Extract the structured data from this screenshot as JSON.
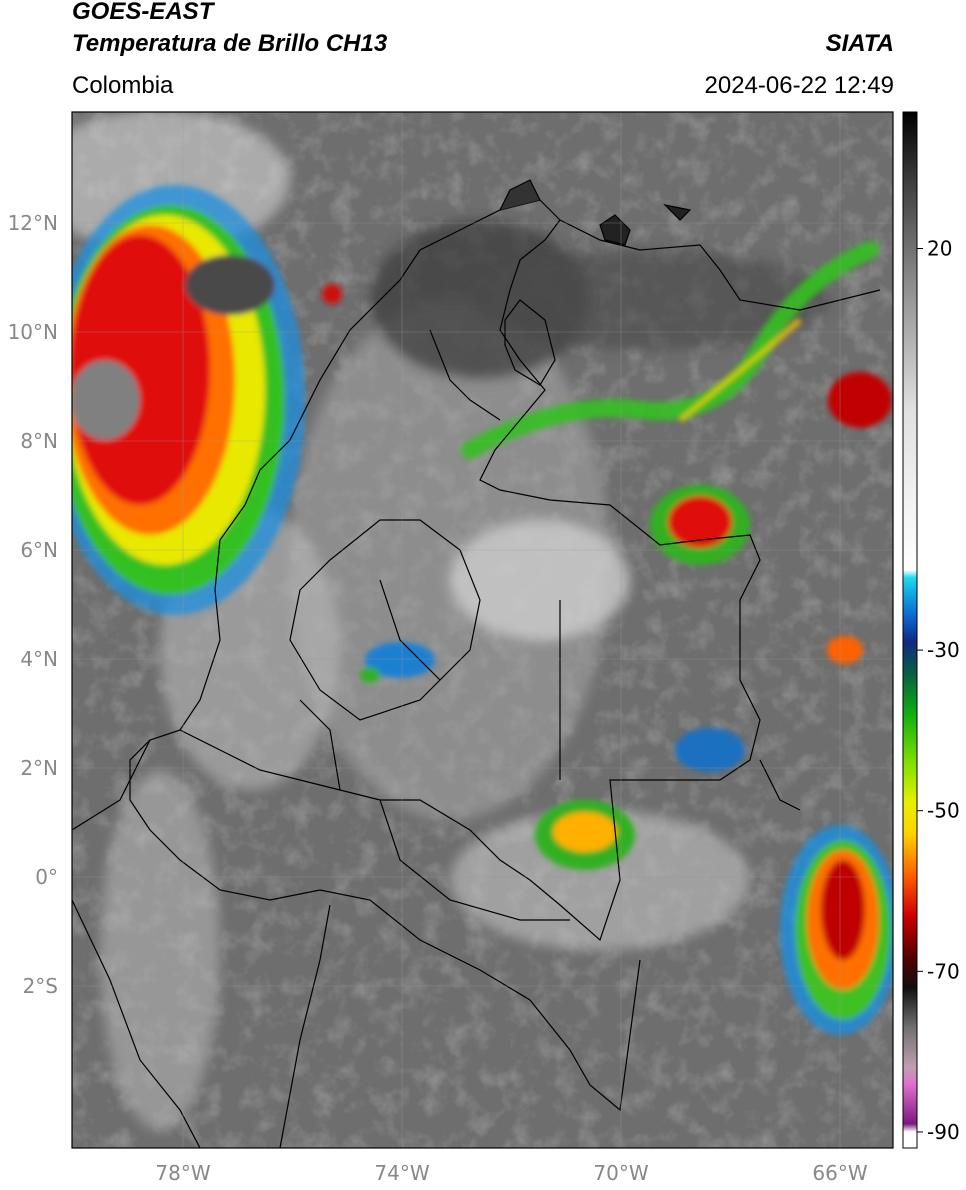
{
  "header": {
    "satellite": "GOES-EAST",
    "product": "Temperatura de Brillo CH13",
    "org": "SIATA",
    "region": "Colombia",
    "datetime": "2024-06-22 12:49"
  },
  "map": {
    "lat_labels": [
      "12°N",
      "10°N",
      "8°N",
      "6°N",
      "4°N",
      "2°N",
      "0°",
      "2°S"
    ],
    "lon_labels": [
      "78°W",
      "74°W",
      "70°W",
      "66°W"
    ],
    "lat_range": [
      -5,
      14
    ],
    "lon_range": [
      -80,
      -65
    ]
  },
  "colorbar": {
    "labels": [
      "20",
      "-30",
      "-50",
      "-70",
      "-90"
    ],
    "range": [
      -92,
      37
    ],
    "stops": [
      {
        "v": -92,
        "c": "#ffffff"
      },
      {
        "v": -90,
        "c": "#ffffff"
      },
      {
        "v": -89,
        "c": "#7a1a80"
      },
      {
        "v": -84,
        "c": "#e070d0"
      },
      {
        "v": -82,
        "c": "#c0a0b0"
      },
      {
        "v": -77,
        "c": "#707070"
      },
      {
        "v": -72,
        "c": "#101010"
      },
      {
        "v": -68,
        "c": "#5a0000"
      },
      {
        "v": -63,
        "c": "#d00000"
      },
      {
        "v": -58,
        "c": "#ff6000"
      },
      {
        "v": -53,
        "c": "#ffd000"
      },
      {
        "v": -49,
        "c": "#e8f000"
      },
      {
        "v": -44,
        "c": "#80e000"
      },
      {
        "v": -38,
        "c": "#10b010"
      },
      {
        "v": -33,
        "c": "#0a5f40"
      },
      {
        "v": -29,
        "c": "#102a80"
      },
      {
        "v": -26,
        "c": "#1060d0"
      },
      {
        "v": -23,
        "c": "#10a8e0"
      },
      {
        "v": -21,
        "c": "#20d8f0"
      },
      {
        "v": -20,
        "c": "#ffffff"
      },
      {
        "v": 0,
        "c": "#e0e0e0"
      },
      {
        "v": 15,
        "c": "#909090"
      },
      {
        "v": 28,
        "c": "#404040"
      },
      {
        "v": 37,
        "c": "#000000"
      }
    ]
  }
}
